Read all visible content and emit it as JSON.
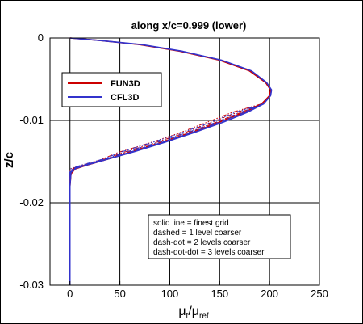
{
  "chart_data": {
    "type": "line",
    "title": "along x/c=0.999 (lower)",
    "xlabel": "μt/μref",
    "xlabel_main": "μ",
    "xlabel_sub1": "t",
    "xlabel_slash": "/",
    "xlabel_sub2": "ref",
    "ylabel": "z/c",
    "xlim": [
      -20,
      250
    ],
    "ylim": [
      -0.03,
      0
    ],
    "xticks": [
      0,
      50,
      100,
      150,
      200,
      250
    ],
    "xtick_labels": [
      "0",
      "50",
      "100",
      "150",
      "200",
      "250"
    ],
    "yticks": [
      0,
      -0.01,
      -0.02,
      -0.03
    ],
    "ytick_labels": [
      "0",
      "-0.01",
      "-0.02",
      "-0.03"
    ],
    "grid": true,
    "legend": {
      "placement": "top-left",
      "entries": [
        {
          "name": "FUN3D",
          "color": "#cc0000"
        },
        {
          "name": "CFL3D",
          "color": "#3333cc"
        }
      ]
    },
    "annotation": {
      "lines": [
        "solid line = finest grid",
        "dashed = 1 level coarser",
        "dash-dot = 2 levels coarser",
        "dash-dot-dot = 3 levels coarser"
      ]
    },
    "series": [
      {
        "name": "FUN3D",
        "color": "#cc0000",
        "points": [
          [
            0,
            0
          ],
          [
            30,
            -0.0003
          ],
          [
            70,
            -0.0008
          ],
          [
            110,
            -0.0016
          ],
          [
            150,
            -0.0027
          ],
          [
            180,
            -0.004
          ],
          [
            196,
            -0.0054
          ],
          [
            201,
            -0.0063
          ],
          [
            200,
            -0.007
          ],
          [
            192,
            -0.008
          ],
          [
            175,
            -0.009
          ],
          [
            150,
            -0.0102
          ],
          [
            120,
            -0.0116
          ],
          [
            90,
            -0.0128
          ],
          [
            60,
            -0.0139
          ],
          [
            35,
            -0.0148
          ],
          [
            15,
            -0.0155
          ],
          [
            5,
            -0.0159
          ],
          [
            1,
            -0.0165
          ],
          [
            0,
            -0.018
          ],
          [
            0,
            -0.03
          ]
        ]
      },
      {
        "name": "CFL3D",
        "color": "#3333cc",
        "points": [
          [
            0,
            0
          ],
          [
            30,
            -0.0003
          ],
          [
            72,
            -0.0008
          ],
          [
            112,
            -0.0016
          ],
          [
            152,
            -0.0027
          ],
          [
            182,
            -0.004
          ],
          [
            197,
            -0.0054
          ],
          [
            202,
            -0.0063
          ],
          [
            201,
            -0.007
          ],
          [
            194,
            -0.008
          ],
          [
            178,
            -0.009
          ],
          [
            154,
            -0.0102
          ],
          [
            124,
            -0.0115
          ],
          [
            94,
            -0.0127
          ],
          [
            64,
            -0.0138
          ],
          [
            38,
            -0.0147
          ],
          [
            17,
            -0.0154
          ],
          [
            6,
            -0.0158
          ],
          [
            1,
            -0.0163
          ],
          [
            0,
            -0.018
          ],
          [
            0,
            -0.03
          ]
        ]
      }
    ],
    "coarse_grid_variants": [
      {
        "style": "dashed",
        "shift": -3
      },
      {
        "style": "dash-dot",
        "shift": -7
      },
      {
        "style": "dash-dot-dot",
        "shift": -12
      }
    ]
  }
}
